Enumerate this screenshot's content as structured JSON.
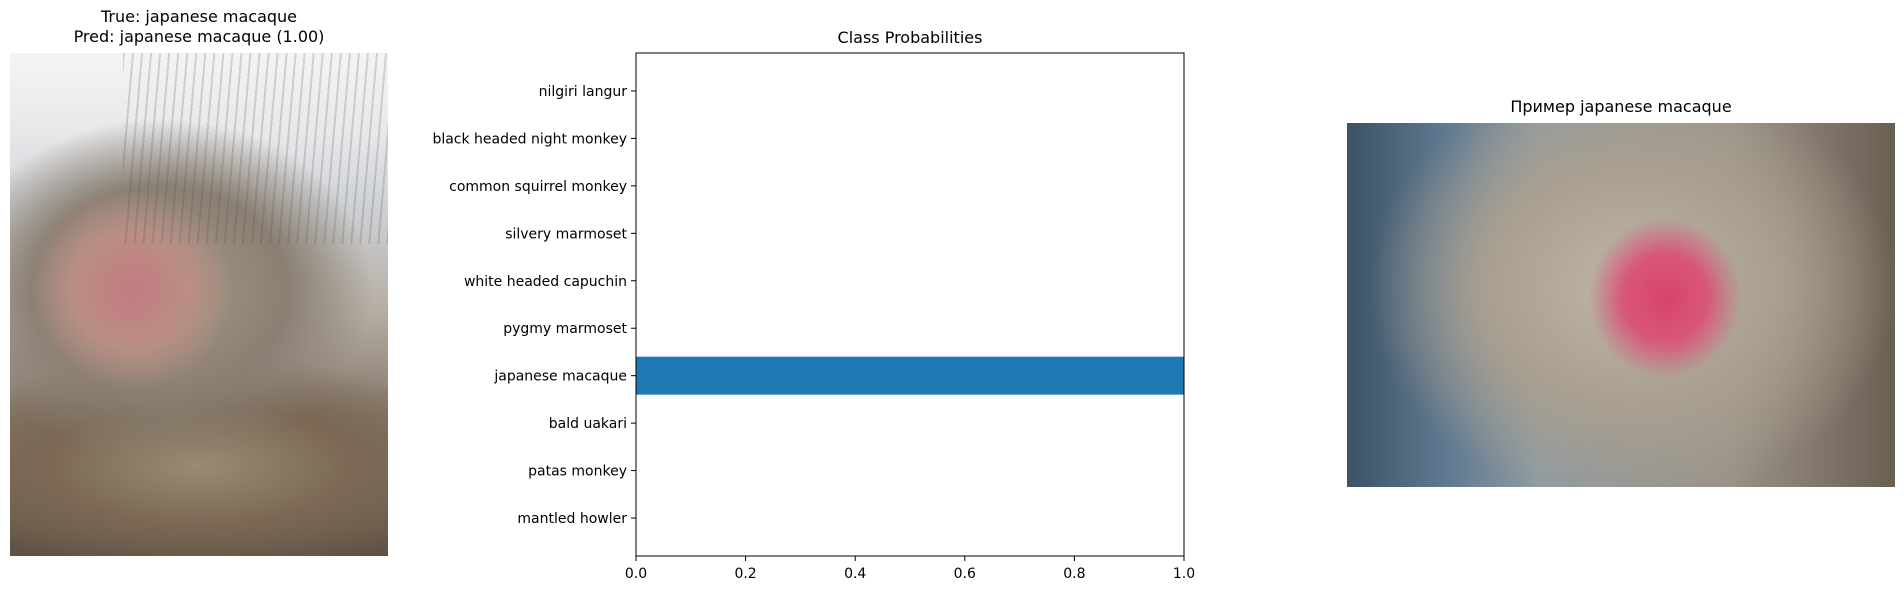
{
  "panels": {
    "left": {
      "title_line1": "True: japanese macaque",
      "title_line2": "Pred: japanese macaque (1.00)"
    },
    "right": {
      "title": "Пример japanese macaque"
    }
  },
  "chart_data": {
    "type": "bar",
    "orientation": "horizontal",
    "title": "Class Probabilities",
    "categories": [
      "mantled howler",
      "patas monkey",
      "bald uakari",
      "japanese macaque",
      "pygmy marmoset",
      "white headed capuchin",
      "silvery marmoset",
      "common squirrel monkey",
      "black headed night monkey",
      "nilgiri langur"
    ],
    "values": [
      0.0,
      0.0,
      0.0,
      1.0,
      0.0,
      0.0,
      0.0,
      0.0,
      0.0,
      0.0
    ],
    "xlim": [
      0,
      1.0
    ],
    "xticks": [
      "0.0",
      "0.2",
      "0.4",
      "0.6",
      "0.8",
      "1.0"
    ],
    "xlabel": "",
    "ylabel": "",
    "grid": false,
    "bar_color": "#1f77b4"
  }
}
